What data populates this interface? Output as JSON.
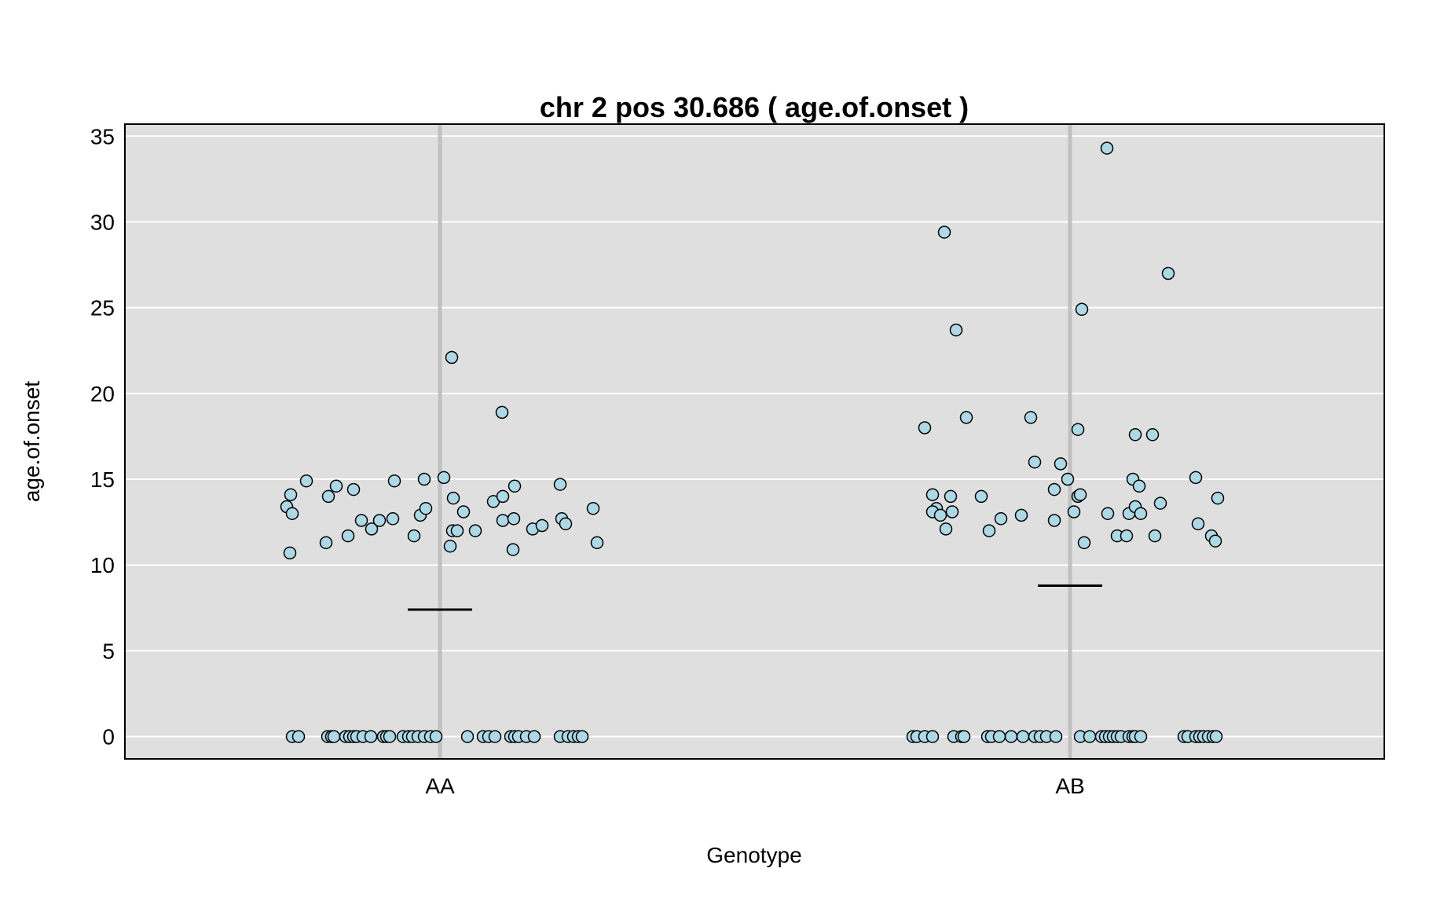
{
  "chart_data": {
    "type": "scatter",
    "title": "chr 2 pos 30.686 ( age.of.onset )",
    "xlabel": "Genotype",
    "ylabel": "age.of.onset",
    "categories": [
      "AA",
      "AB"
    ],
    "ylim": [
      -1.3,
      35.7
    ],
    "yticks": [
      "0",
      "5",
      "10",
      "15",
      "20",
      "25",
      "30",
      "35"
    ],
    "grid": true,
    "colors": {
      "panel": "#dfdfdf",
      "grid": "#ffffff",
      "category_line": "#c0c0c0",
      "point_fill": "#add8e6",
      "point_stroke": "#000000",
      "mean_line": "#000000"
    },
    "series": [
      {
        "category": "AA",
        "mean": 7.4,
        "points": [
          {
            "x": -0.19,
            "y": 14.1
          },
          {
            "x": -0.195,
            "y": 13.4
          },
          {
            "x": -0.188,
            "y": 13.0
          },
          {
            "x": -0.191,
            "y": 10.7
          },
          {
            "x": -0.17,
            "y": 14.9
          },
          {
            "x": -0.145,
            "y": 11.3
          },
          {
            "x": -0.142,
            "y": 14.0
          },
          {
            "x": -0.132,
            "y": 14.6
          },
          {
            "x": -0.117,
            "y": 11.7
          },
          {
            "x": -0.11,
            "y": 14.4
          },
          {
            "x": -0.1,
            "y": 12.6
          },
          {
            "x": -0.087,
            "y": 12.1
          },
          {
            "x": -0.077,
            "y": 12.6
          },
          {
            "x": -0.058,
            "y": 14.9
          },
          {
            "x": -0.06,
            "y": 12.7
          },
          {
            "x": -0.033,
            "y": 11.7
          },
          {
            "x": -0.025,
            "y": 12.9
          },
          {
            "x": -0.02,
            "y": 15.0
          },
          {
            "x": -0.018,
            "y": 13.3
          },
          {
            "x": 0.005,
            "y": 15.1
          },
          {
            "x": 0.015,
            "y": 22.1
          },
          {
            "x": 0.017,
            "y": 13.9
          },
          {
            "x": 0.013,
            "y": 11.1
          },
          {
            "x": 0.016,
            "y": 12.0
          },
          {
            "x": 0.022,
            "y": 12.0
          },
          {
            "x": 0.03,
            "y": 13.1
          },
          {
            "x": 0.045,
            "y": 12.0
          },
          {
            "x": 0.068,
            "y": 13.7
          },
          {
            "x": 0.079,
            "y": 18.9
          },
          {
            "x": 0.08,
            "y": 14.0
          },
          {
            "x": 0.08,
            "y": 12.6
          },
          {
            "x": 0.095,
            "y": 14.6
          },
          {
            "x": 0.094,
            "y": 12.7
          },
          {
            "x": 0.093,
            "y": 10.9
          },
          {
            "x": 0.118,
            "y": 12.1
          },
          {
            "x": 0.13,
            "y": 12.3
          },
          {
            "x": 0.153,
            "y": 14.7
          },
          {
            "x": 0.155,
            "y": 12.7
          },
          {
            "x": 0.16,
            "y": 12.4
          },
          {
            "x": 0.195,
            "y": 13.3
          },
          {
            "x": 0.2,
            "y": 11.3
          },
          {
            "x": -0.188,
            "y": 0
          },
          {
            "x": -0.18,
            "y": 0
          },
          {
            "x": -0.143,
            "y": 0
          },
          {
            "x": -0.138,
            "y": 0
          },
          {
            "x": -0.135,
            "y": 0
          },
          {
            "x": -0.12,
            "y": 0
          },
          {
            "x": -0.115,
            "y": 0
          },
          {
            "x": -0.11,
            "y": 0
          },
          {
            "x": -0.106,
            "y": 0
          },
          {
            "x": -0.098,
            "y": 0
          },
          {
            "x": -0.088,
            "y": 0
          },
          {
            "x": -0.072,
            "y": 0
          },
          {
            "x": -0.068,
            "y": 0
          },
          {
            "x": -0.064,
            "y": 0
          },
          {
            "x": -0.047,
            "y": 0
          },
          {
            "x": -0.04,
            "y": 0
          },
          {
            "x": -0.035,
            "y": 0
          },
          {
            "x": -0.028,
            "y": 0
          },
          {
            "x": -0.02,
            "y": 0
          },
          {
            "x": -0.012,
            "y": 0
          },
          {
            "x": -0.005,
            "y": 0
          },
          {
            "x": 0.035,
            "y": 0
          },
          {
            "x": 0.055,
            "y": 0
          },
          {
            "x": 0.062,
            "y": 0
          },
          {
            "x": 0.07,
            "y": 0
          },
          {
            "x": 0.09,
            "y": 0
          },
          {
            "x": 0.095,
            "y": 0
          },
          {
            "x": 0.1,
            "y": 0
          },
          {
            "x": 0.11,
            "y": 0
          },
          {
            "x": 0.12,
            "y": 0
          },
          {
            "x": 0.153,
            "y": 0
          },
          {
            "x": 0.163,
            "y": 0
          },
          {
            "x": 0.17,
            "y": 0
          },
          {
            "x": 0.176,
            "y": 0
          },
          {
            "x": 0.181,
            "y": 0
          }
        ]
      },
      {
        "category": "AB",
        "mean": 8.8,
        "points": [
          {
            "x": -0.185,
            "y": 18.0
          },
          {
            "x": -0.16,
            "y": 29.4
          },
          {
            "x": -0.145,
            "y": 23.7
          },
          {
            "x": -0.132,
            "y": 18.6
          },
          {
            "x": -0.175,
            "y": 14.1
          },
          {
            "x": -0.17,
            "y": 13.3
          },
          {
            "x": -0.175,
            "y": 13.1
          },
          {
            "x": -0.165,
            "y": 12.9
          },
          {
            "x": -0.158,
            "y": 12.1
          },
          {
            "x": -0.152,
            "y": 14.0
          },
          {
            "x": -0.15,
            "y": 13.1
          },
          {
            "x": -0.113,
            "y": 14.0
          },
          {
            "x": -0.103,
            "y": 12.0
          },
          {
            "x": -0.088,
            "y": 12.7
          },
          {
            "x": -0.062,
            "y": 12.9
          },
          {
            "x": -0.05,
            "y": 18.6
          },
          {
            "x": -0.045,
            "y": 16.0
          },
          {
            "x": -0.02,
            "y": 14.4
          },
          {
            "x": -0.02,
            "y": 12.6
          },
          {
            "x": -0.012,
            "y": 15.9
          },
          {
            "x": -0.003,
            "y": 15.0
          },
          {
            "x": 0.005,
            "y": 13.1
          },
          {
            "x": 0.01,
            "y": 17.9
          },
          {
            "x": 0.01,
            "y": 14.0
          },
          {
            "x": 0.013,
            "y": 14.1
          },
          {
            "x": 0.015,
            "y": 24.9
          },
          {
            "x": 0.018,
            "y": 11.3
          },
          {
            "x": 0.047,
            "y": 34.3
          },
          {
            "x": 0.048,
            "y": 13.0
          },
          {
            "x": 0.06,
            "y": 11.7
          },
          {
            "x": 0.072,
            "y": 11.7
          },
          {
            "x": 0.075,
            "y": 13.0
          },
          {
            "x": 0.08,
            "y": 15.0
          },
          {
            "x": 0.083,
            "y": 17.6
          },
          {
            "x": 0.083,
            "y": 13.4
          },
          {
            "x": 0.088,
            "y": 14.6
          },
          {
            "x": 0.09,
            "y": 13.0
          },
          {
            "x": 0.105,
            "y": 17.6
          },
          {
            "x": 0.108,
            "y": 11.7
          },
          {
            "x": 0.115,
            "y": 13.6
          },
          {
            "x": 0.125,
            "y": 27.0
          },
          {
            "x": 0.16,
            "y": 15.1
          },
          {
            "x": 0.163,
            "y": 12.4
          },
          {
            "x": 0.18,
            "y": 11.7
          },
          {
            "x": 0.185,
            "y": 11.4
          },
          {
            "x": 0.188,
            "y": 13.9
          },
          {
            "x": -0.2,
            "y": 0
          },
          {
            "x": -0.195,
            "y": 0
          },
          {
            "x": -0.185,
            "y": 0
          },
          {
            "x": -0.175,
            "y": 0
          },
          {
            "x": -0.148,
            "y": 0
          },
          {
            "x": -0.138,
            "y": 0
          },
          {
            "x": -0.135,
            "y": 0
          },
          {
            "x": -0.105,
            "y": 0
          },
          {
            "x": -0.1,
            "y": 0
          },
          {
            "x": -0.09,
            "y": 0
          },
          {
            "x": -0.075,
            "y": 0
          },
          {
            "x": -0.06,
            "y": 0
          },
          {
            "x": -0.045,
            "y": 0
          },
          {
            "x": -0.038,
            "y": 0
          },
          {
            "x": -0.03,
            "y": 0
          },
          {
            "x": -0.018,
            "y": 0
          },
          {
            "x": 0.013,
            "y": 0
          },
          {
            "x": 0.025,
            "y": 0
          },
          {
            "x": 0.04,
            "y": 0
          },
          {
            "x": 0.045,
            "y": 0
          },
          {
            "x": 0.05,
            "y": 0
          },
          {
            "x": 0.055,
            "y": 0
          },
          {
            "x": 0.06,
            "y": 0
          },
          {
            "x": 0.065,
            "y": 0
          },
          {
            "x": 0.075,
            "y": 0
          },
          {
            "x": 0.08,
            "y": 0
          },
          {
            "x": 0.083,
            "y": 0
          },
          {
            "x": 0.09,
            "y": 0
          },
          {
            "x": 0.145,
            "y": 0
          },
          {
            "x": 0.15,
            "y": 0
          },
          {
            "x": 0.16,
            "y": 0
          },
          {
            "x": 0.165,
            "y": 0
          },
          {
            "x": 0.17,
            "y": 0
          },
          {
            "x": 0.176,
            "y": 0
          },
          {
            "x": 0.182,
            "y": 0
          },
          {
            "x": 0.186,
            "y": 0
          }
        ]
      }
    ]
  }
}
